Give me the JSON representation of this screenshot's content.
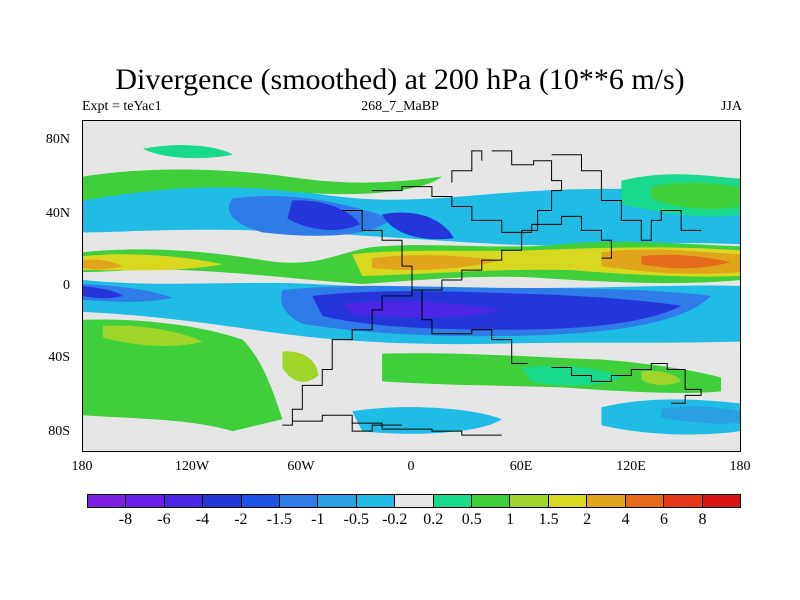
{
  "title": "Divergence (smoothed) at 200 hPa (10**6 m/s)",
  "subtitle_left": "Expt = teYac1",
  "subtitle_center": "268_7_MaBP",
  "subtitle_right": "JJA",
  "lat_ticks": [
    "80N",
    "40N",
    "0",
    "40S",
    "80S"
  ],
  "lon_ticks": [
    "180",
    "120W",
    "60W",
    "0",
    "60E",
    "120E",
    "180"
  ],
  "colorbar": {
    "labels": [
      "-8",
      "-6",
      "-4",
      "-2",
      "-1.5",
      "-1",
      "-0.5",
      "-0.2",
      "0.2",
      "0.5",
      "1",
      "1.5",
      "2",
      "4",
      "6",
      "8"
    ],
    "colors": [
      "#7B1FE0",
      "#6A1FE8",
      "#4B27E5",
      "#2436D9",
      "#1E54E3",
      "#2F7CE8",
      "#2AA0E0",
      "#20BCE6",
      "#E6E6E6",
      "#18D98C",
      "#3FCF3A",
      "#9FD42A",
      "#D8D820",
      "#E0A51A",
      "#E56A1A",
      "#E43A1A",
      "#D91414"
    ]
  }
}
